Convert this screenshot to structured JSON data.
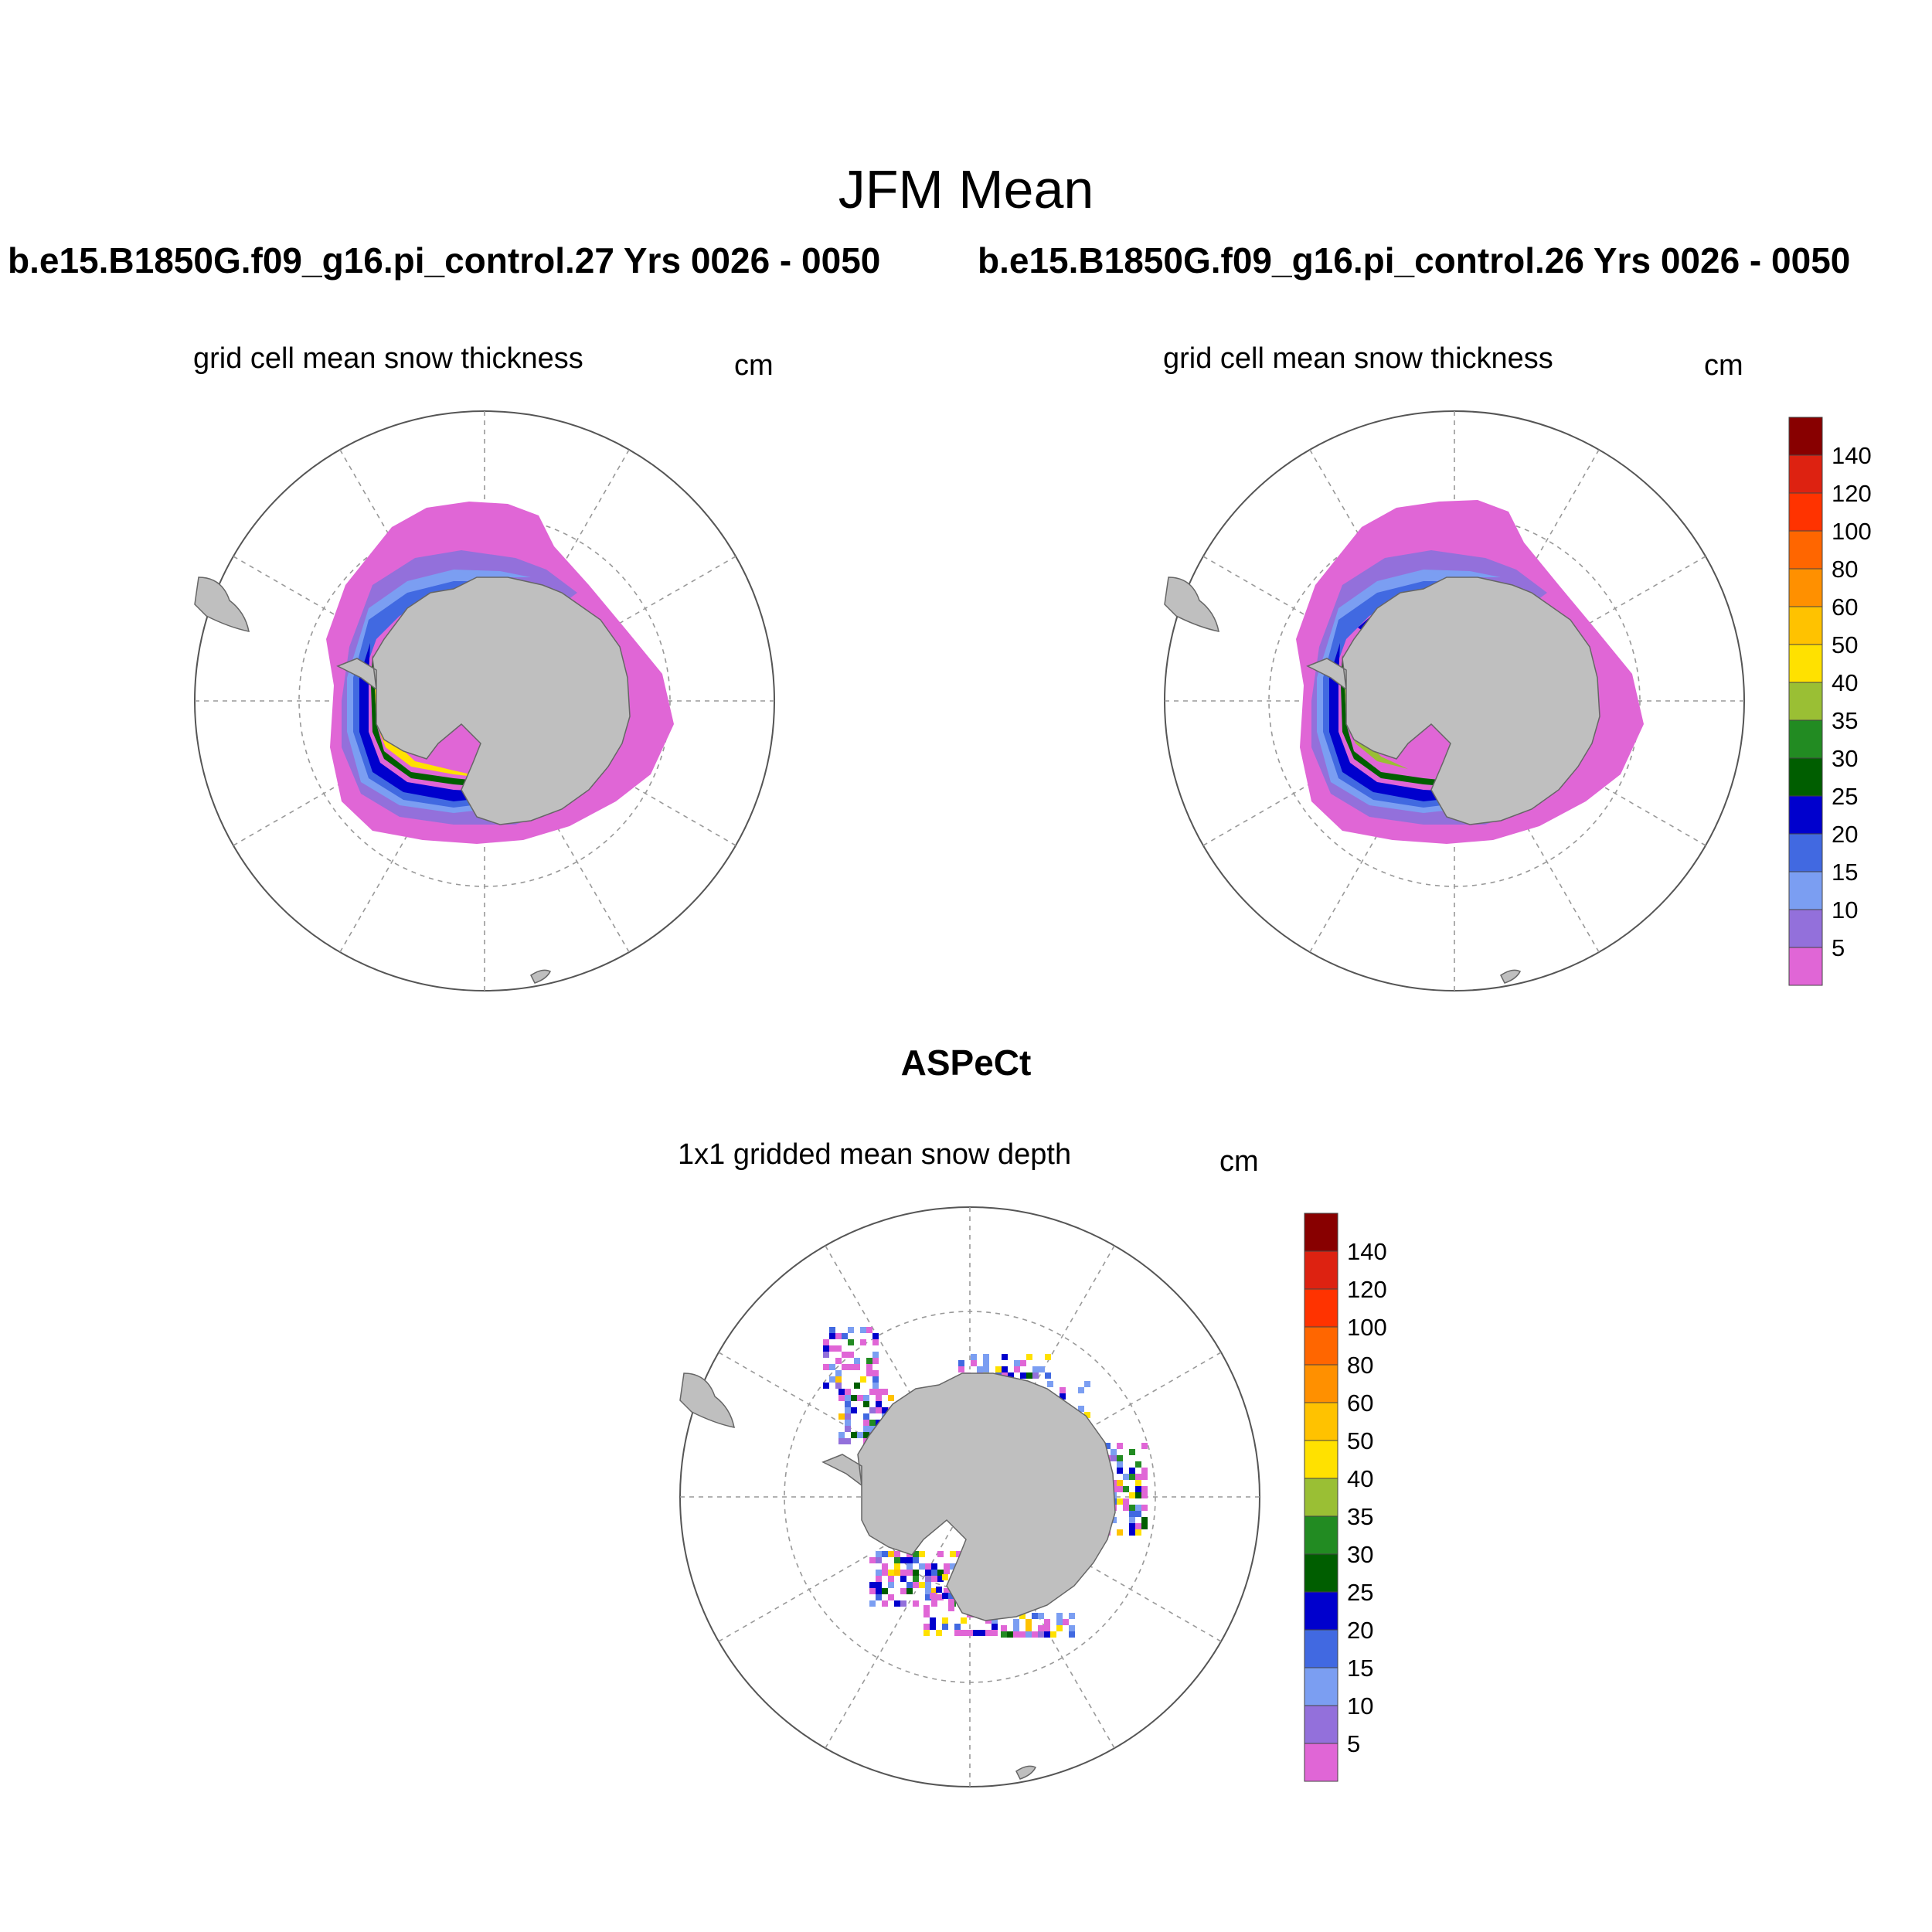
{
  "figure": {
    "title": "JFM Mean",
    "case_left": "b.e15.B1850G.f09_g16.pi_control.27  Yrs 0026 - 0050",
    "case_right": "b.e15.B1850G.f09_g16.pi_control.26  Yrs 0026 - 0050",
    "obs_title": "ASPeCt"
  },
  "panels": [
    {
      "id": "model-27",
      "subtitle": "grid cell mean snow thickness",
      "units": "cm"
    },
    {
      "id": "model-26",
      "subtitle": "grid cell mean snow thickness",
      "units": "cm"
    },
    {
      "id": "aspect",
      "subtitle": "1x1 gridded mean snow depth",
      "units": "cm"
    }
  ],
  "colorbar": {
    "labels": [
      "5",
      "10",
      "15",
      "20",
      "25",
      "30",
      "35",
      "40",
      "50",
      "60",
      "80",
      "100",
      "120",
      "140"
    ],
    "colors": [
      "#e066d6",
      "#9370db",
      "#7b9ef2",
      "#4169e1",
      "#0000cd",
      "#005e00",
      "#228b22",
      "#9abf34",
      "#ffe100",
      "#ffc200",
      "#ff9000",
      "#ff6600",
      "#ff3300",
      "#dd2211",
      "#880000"
    ]
  },
  "map_colors": {
    "land": "#bfbfbf",
    "grid": "#808080"
  }
}
